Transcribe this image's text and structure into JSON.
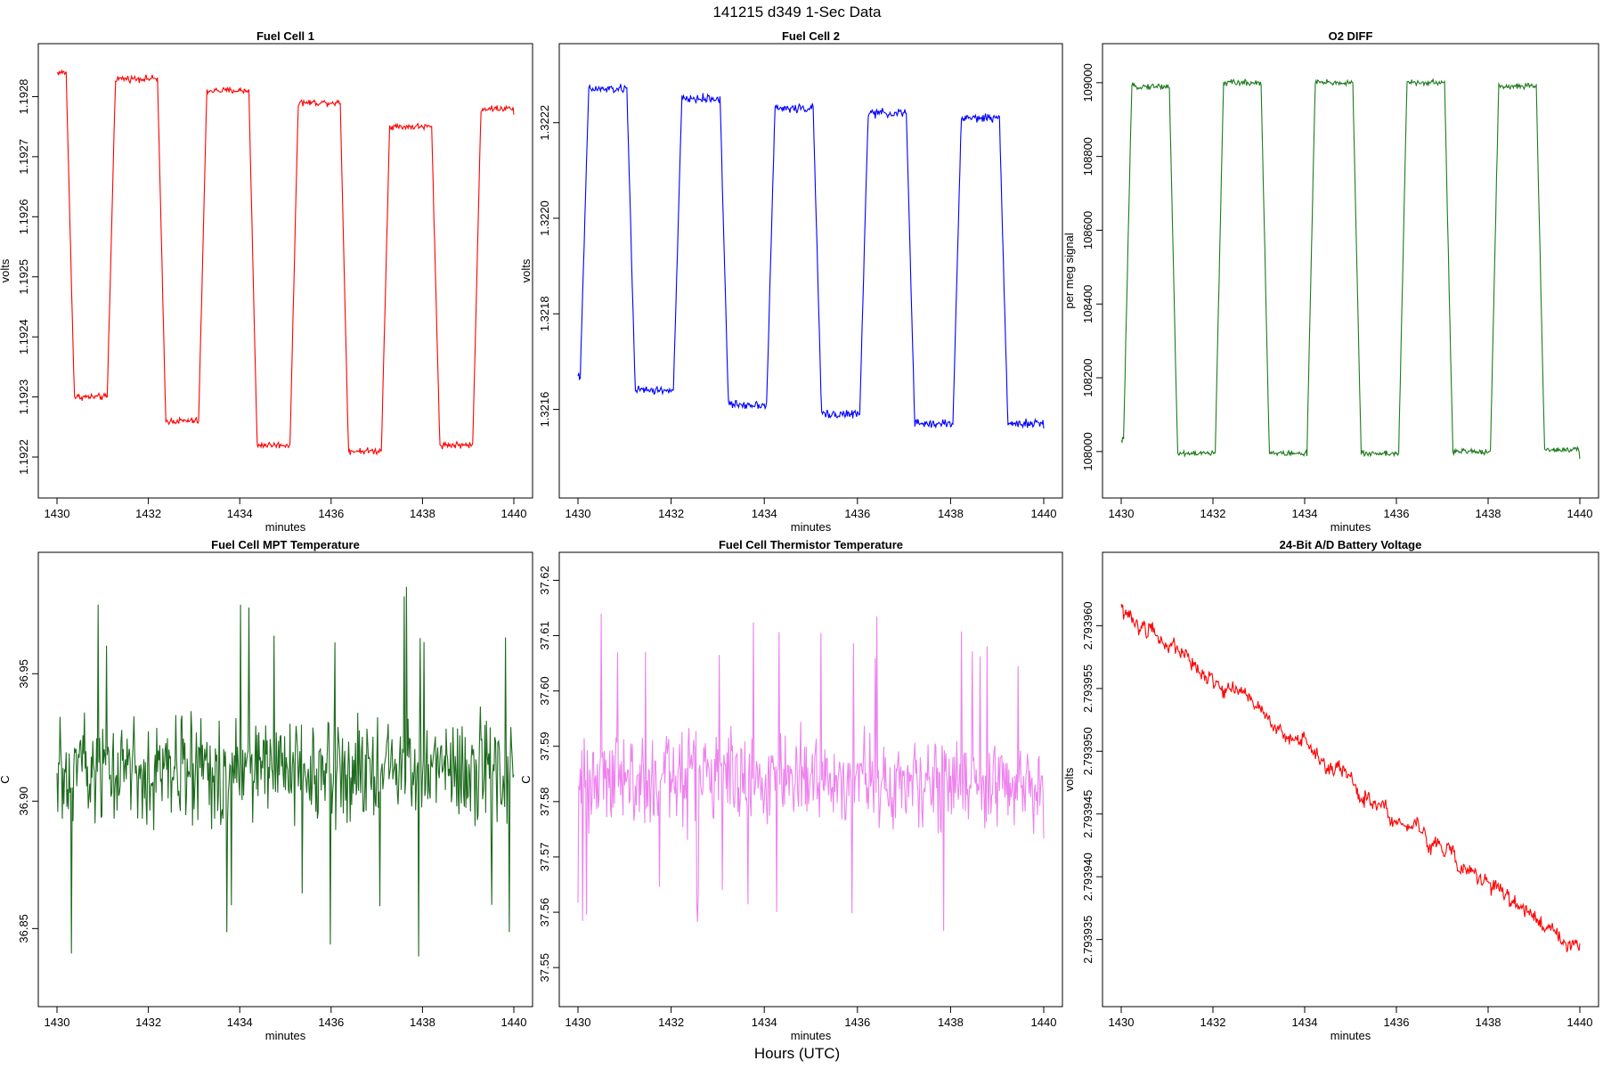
{
  "figure": {
    "title": "141215   d349   1-Sec Data",
    "outer_xlabel": "Hours (UTC)"
  },
  "chart_data": [
    {
      "type": "line",
      "title": "Fuel Cell 1",
      "xlabel": "minutes",
      "ylabel": "volts",
      "color": "#ff0000",
      "xlim": [
        1430,
        1440
      ],
      "ylim": [
        1.19216,
        1.19286
      ],
      "xticks": [
        1430,
        1432,
        1434,
        1436,
        1438,
        1440
      ],
      "yticks": [
        1.1922,
        1.1923,
        1.1924,
        1.1925,
        1.1926,
        1.1927,
        1.1928
      ],
      "ytick_labels": [
        "1.1922",
        "1.1923",
        "1.1924",
        "1.1925",
        "1.1926",
        "1.1927",
        "1.1928"
      ],
      "series": [
        {
          "pattern": "square",
          "start": 1.19284,
          "high_levels": [
            1.19284,
            1.19283,
            1.19281,
            1.19279,
            1.19275,
            1.19278
          ],
          "low_levels": [
            1.1923,
            1.19226,
            1.19222,
            1.19221,
            1.19222
          ],
          "noise": 8e-06,
          "end": 1.19277
        }
      ]
    },
    {
      "type": "line",
      "title": "Fuel Cell 2",
      "xlabel": "minutes",
      "ylabel": "volts",
      "color": "#0000ff",
      "xlim": [
        1430,
        1440
      ],
      "ylim": [
        1.32145,
        1.32233
      ],
      "xticks": [
        1430,
        1432,
        1434,
        1436,
        1438,
        1440
      ],
      "yticks": [
        1.3216,
        1.3218,
        1.322,
        1.3222
      ],
      "ytick_labels": [
        "1.3216",
        "1.3218",
        "1.3220",
        "1.3222"
      ],
      "series": [
        {
          "pattern": "square",
          "start": 1.32167,
          "high_levels": [
            1.32227,
            1.32225,
            1.32223,
            1.32222,
            1.32221
          ],
          "low_levels": [
            1.32164,
            1.32161,
            1.32159,
            1.32157,
            1.32157
          ],
          "noise": 1.3e-05,
          "end": 1.32156
        }
      ]
    },
    {
      "type": "line",
      "title": "O2 DIFF",
      "xlabel": "minutes",
      "ylabel": "per meg signal",
      "color": "#1e7a1e",
      "xlim": [
        1430,
        1440
      ],
      "ylim": [
        107920,
        109060
      ],
      "xticks": [
        1430,
        1432,
        1434,
        1436,
        1438,
        1440
      ],
      "yticks": [
        108000,
        108200,
        108400,
        108600,
        108800,
        109000
      ],
      "ytick_labels": [
        "108000",
        "108200",
        "108400",
        "108600",
        "108800",
        "109000"
      ],
      "series": [
        {
          "pattern": "square",
          "start": 108030,
          "high_levels": [
            108990,
            109000,
            109000,
            109000,
            108990
          ],
          "low_levels": [
            107995,
            107995,
            107995,
            108000,
            108005
          ],
          "noise": 12,
          "end": 107980
        }
      ]
    },
    {
      "type": "line",
      "title": "Fuel Cell MPT Temperature",
      "xlabel": "minutes",
      "ylabel": "C",
      "color": "#1e6b1e",
      "xlim": [
        1430,
        1440
      ],
      "ylim": [
        36.826,
        36.991
      ],
      "xticks": [
        1430,
        1432,
        1434,
        1436,
        1438,
        1440
      ],
      "yticks": [
        36.85,
        36.9,
        36.95
      ],
      "ytick_labels": [
        "36.85",
        "36.90",
        "36.95"
      ],
      "series": [
        {
          "pattern": "noise",
          "mean": 36.912,
          "spread": 0.03,
          "min": 36.834,
          "max": 36.985
        }
      ]
    },
    {
      "type": "line",
      "title": "Fuel Cell Thermistor Temperature",
      "xlabel": "minutes",
      "ylabel": "C",
      "color": "#ee82ee",
      "xlim": [
        1430,
        1440
      ],
      "ylim": [
        37.546,
        37.622
      ],
      "xticks": [
        1430,
        1432,
        1434,
        1436,
        1438,
        1440
      ],
      "yticks": [
        37.55,
        37.56,
        37.57,
        37.58,
        37.59,
        37.6,
        37.61,
        37.62
      ],
      "ytick_labels": [
        "37.55",
        "37.56",
        "37.57",
        "37.58",
        "37.59",
        "37.60",
        "37.61",
        "37.62"
      ],
      "series": [
        {
          "pattern": "noise",
          "mean": 37.584,
          "spread": 0.012,
          "min": 37.55,
          "max": 37.618
        }
      ]
    },
    {
      "type": "line",
      "title": "24-Bit A/D Battery Voltage",
      "xlabel": "minutes",
      "ylabel": "volts",
      "color": "#ff0000",
      "xlim": [
        1430,
        1440
      ],
      "ylim": [
        2.793931,
        2.7939645
      ],
      "xticks": [
        1430,
        1432,
        1434,
        1436,
        1438,
        1440
      ],
      "yticks": [
        2.793935,
        2.79394,
        2.793945,
        2.79395,
        2.793955,
        2.79396
      ],
      "ytick_labels": [
        "2.793935",
        "2.793940",
        "2.793945",
        "2.793950",
        "2.793955",
        "2.793960"
      ],
      "series": [
        {
          "pattern": "drift",
          "start": 2.7939615,
          "end": 2.793934,
          "noise": 1.2e-06
        }
      ]
    }
  ]
}
